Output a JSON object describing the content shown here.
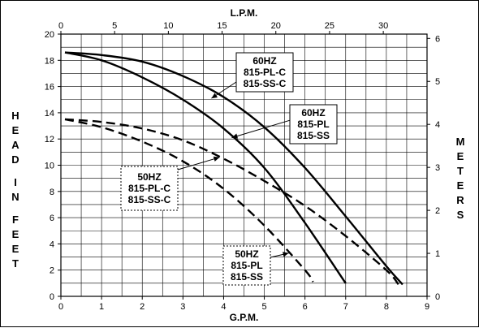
{
  "chart_data": {
    "type": "line",
    "x_axis_bottom": {
      "title": "G.P.M.",
      "min": 0,
      "max": 9,
      "ticks": [
        "0",
        "1",
        "2",
        "3",
        "4",
        "5",
        "6",
        "7",
        "8",
        "9"
      ]
    },
    "x_axis_top": {
      "title": "L.P.M.",
      "min": 0,
      "max": 34.07,
      "ticks": [
        "0",
        "5",
        "10",
        "15",
        "20",
        "25",
        "30"
      ]
    },
    "y_axis_left": {
      "title": "HEAD IN FEET",
      "title_words": [
        "HEAD",
        "IN",
        "FEET"
      ],
      "min": 0,
      "max": 20,
      "ticks": [
        "0",
        "2",
        "4",
        "6",
        "8",
        "10",
        "12",
        "14",
        "16",
        "18",
        "20"
      ]
    },
    "y_axis_right": {
      "title": "METERS",
      "min": 0,
      "max": 6.1,
      "ticks": [
        "0",
        "1",
        "2",
        "3",
        "4",
        "5",
        "6"
      ]
    },
    "grid": true,
    "series": [
      {
        "name": "60HZ 815-PL-C 815-SS-C",
        "style": "solid",
        "points": [
          [
            0.1,
            18.6
          ],
          [
            1,
            18.4
          ],
          [
            2,
            17.9
          ],
          [
            3,
            16.8
          ],
          [
            4,
            15.2
          ],
          [
            5,
            12.9
          ],
          [
            6,
            9.8
          ],
          [
            7,
            6.1
          ],
          [
            8,
            2.3
          ],
          [
            8.4,
            0.9
          ]
        ]
      },
      {
        "name": "60HZ 815-PL 815-SS",
        "style": "solid",
        "points": [
          [
            0.1,
            18.6
          ],
          [
            1,
            18.0
          ],
          [
            2,
            16.7
          ],
          [
            3,
            15.0
          ],
          [
            4,
            12.8
          ],
          [
            5,
            9.8
          ],
          [
            6,
            5.6
          ],
          [
            7,
            1.0
          ]
        ]
      },
      {
        "name": "50HZ 815-PL-C 815-SS-C",
        "style": "dashed",
        "points": [
          [
            0.1,
            13.5
          ],
          [
            1,
            13.3
          ],
          [
            2,
            12.8
          ],
          [
            3,
            11.9
          ],
          [
            4,
            10.5
          ],
          [
            5,
            8.8
          ],
          [
            6,
            6.9
          ],
          [
            7,
            4.6
          ],
          [
            8,
            2.0
          ],
          [
            8.3,
            0.9
          ]
        ]
      },
      {
        "name": "50HZ 815-PL 815-SS",
        "style": "dashed",
        "points": [
          [
            0.1,
            13.5
          ],
          [
            1,
            12.9
          ],
          [
            2,
            11.8
          ],
          [
            3,
            10.3
          ],
          [
            4,
            8.2
          ],
          [
            5,
            5.4
          ],
          [
            6,
            2.0
          ],
          [
            6.2,
            1.1
          ]
        ]
      }
    ],
    "annotations": [
      {
        "id": "ann-60-c",
        "lines": [
          "60HZ",
          "815-PL-C",
          "815-SS-C"
        ],
        "border": "solid"
      },
      {
        "id": "ann-60",
        "lines": [
          "60HZ",
          "815-PL",
          "815-SS"
        ],
        "border": "solid"
      },
      {
        "id": "ann-50-c",
        "lines": [
          "50HZ",
          "815-PL-C",
          "815-SS-C"
        ],
        "border": "dashed"
      },
      {
        "id": "ann-50",
        "lines": [
          "50HZ",
          "815-PL",
          "815-SS"
        ],
        "border": "dashed"
      }
    ],
    "colors": {
      "lines": "#000000",
      "grid": "#000000",
      "background": "#ffffff"
    }
  }
}
